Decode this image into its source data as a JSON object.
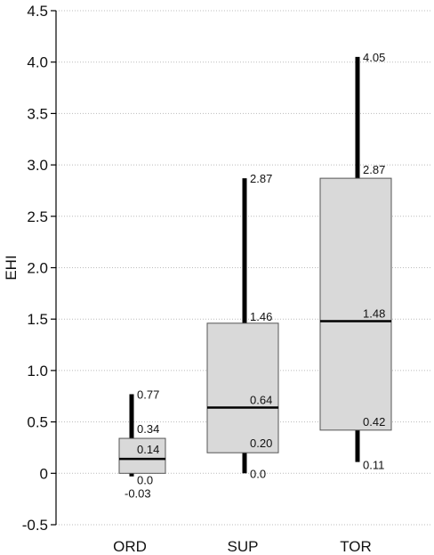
{
  "chart_data": {
    "type": "box",
    "title": "",
    "xlabel": "",
    "ylabel": "EHI",
    "ylim": [
      -0.5,
      4.5
    ],
    "yticks": [
      "-0.5",
      "0",
      "0.5",
      "1.0",
      "1.5",
      "2.0",
      "2.5",
      "3.0",
      "3.5",
      "4.0",
      "4.5"
    ],
    "ytick_values": [
      -0.5,
      0,
      0.5,
      1.0,
      1.5,
      2.0,
      2.5,
      3.0,
      3.5,
      4.0,
      4.5
    ],
    "grid": true,
    "categories": [
      "ORD",
      "SUP",
      "TOR"
    ],
    "boxes": [
      {
        "category": "ORD",
        "whisker_low": -0.03,
        "box_low": 0.0,
        "median": 0.14,
        "box_high": 0.34,
        "whisker_high": 0.77,
        "labels": {
          "whisker_low": "-0.03",
          "box_low": "0.0",
          "median": "0.14",
          "box_high": "0.34",
          "whisker_high": "0.77"
        }
      },
      {
        "category": "SUP",
        "whisker_low": 0.0,
        "box_low": 0.2,
        "median": 0.64,
        "box_high": 1.46,
        "whisker_high": 2.87,
        "labels": {
          "whisker_low": "0.0",
          "box_low": "0.20",
          "median": "0.64",
          "box_high": "1.46",
          "whisker_high": "2.87"
        }
      },
      {
        "category": "TOR",
        "whisker_low": 0.11,
        "box_low": 0.42,
        "median": 1.48,
        "box_high": 2.87,
        "whisker_high": 4.05,
        "labels": {
          "whisker_low": "0.11",
          "box_low": "0.42",
          "median": "1.48",
          "box_high": "2.87",
          "whisker_high": "4.05"
        }
      }
    ],
    "colors": {
      "box_fill": "#d9d9d9",
      "box_stroke": "#555555",
      "line": "#000000",
      "grid": "#bbbbbb"
    }
  }
}
